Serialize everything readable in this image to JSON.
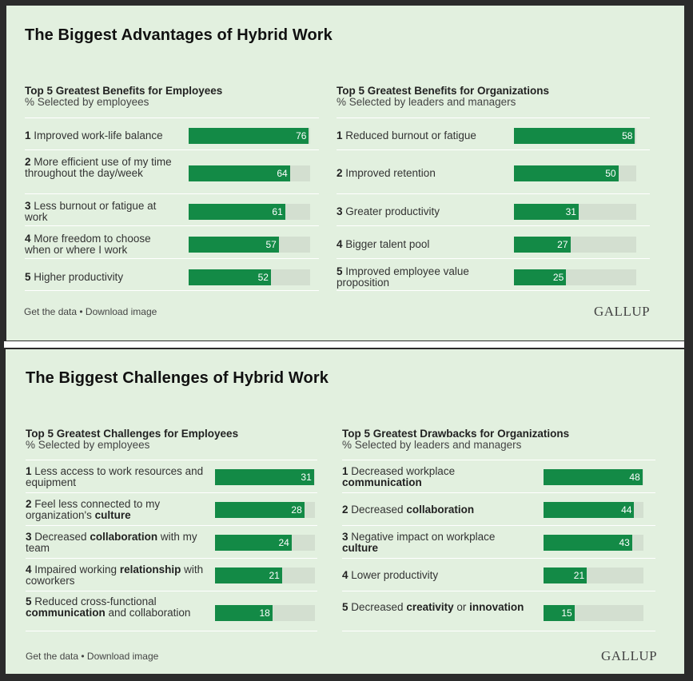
{
  "colors": {
    "bar": "#138a46",
    "track": "#d3dfd0",
    "panel": "#e2f0df"
  },
  "sections": [
    {
      "title": "The Biggest Advantages of Hybrid Work",
      "footer": "Get the data • Download image",
      "logo": "GALLUP",
      "charts": [
        {
          "heading": "Top 5 Greatest Benefits for Employees",
          "subheading": "% Selected by employees",
          "items": [
            {
              "rank": "1",
              "label": [
                {
                  "t": "Improved work-life balance"
                }
              ],
              "value": 76
            },
            {
              "rank": "2",
              "label": [
                {
                  "t": "More efficient use of my time throughout the day/week"
                }
              ],
              "value": 64
            },
            {
              "rank": "3",
              "label": [
                {
                  "t": "Less burnout or fatigue at work"
                }
              ],
              "value": 61
            },
            {
              "rank": "4",
              "label": [
                {
                  "t": "More freedom to choose when or where I work"
                }
              ],
              "value": 57
            },
            {
              "rank": "5",
              "label": [
                {
                  "t": "Higher productivity"
                }
              ],
              "value": 52
            }
          ]
        },
        {
          "heading": "Top 5 Greatest Benefits for Organizations",
          "subheading": "% Selected by leaders and managers",
          "items": [
            {
              "rank": "1",
              "label": [
                {
                  "t": "Reduced burnout or fatigue"
                }
              ],
              "value": 58
            },
            {
              "rank": "2",
              "label": [
                {
                  "t": "Improved retention"
                }
              ],
              "value": 50
            },
            {
              "rank": "3",
              "label": [
                {
                  "t": "Greater productivity"
                }
              ],
              "value": 31
            },
            {
              "rank": "4",
              "label": [
                {
                  "t": "Bigger talent pool"
                }
              ],
              "value": 27
            },
            {
              "rank": "5",
              "label": [
                {
                  "t": "Improved employee value proposition"
                }
              ],
              "value": 25
            }
          ]
        }
      ]
    },
    {
      "title": "The Biggest Challenges of Hybrid Work",
      "footer": "Get the data • Download image",
      "logo": "GALLUP",
      "charts": [
        {
          "heading": "Top 5 Greatest Challenges for Employees",
          "subheading": "% Selected by employees",
          "items": [
            {
              "rank": "1",
              "label": [
                {
                  "t": "Less access to work resources and equipment"
                }
              ],
              "value": 31
            },
            {
              "rank": "2",
              "label": [
                {
                  "t": "Feel less connected to my organization's "
                },
                {
                  "t": "culture",
                  "b": true
                }
              ],
              "value": 28
            },
            {
              "rank": "3",
              "label": [
                {
                  "t": "Decreased "
                },
                {
                  "t": "collaboration",
                  "b": true
                },
                {
                  "t": " with my team"
                }
              ],
              "value": 24
            },
            {
              "rank": "4",
              "label": [
                {
                  "t": "Impaired working "
                },
                {
                  "t": "relationship",
                  "b": true
                },
                {
                  "t": " with coworkers"
                }
              ],
              "value": 21
            },
            {
              "rank": "5",
              "label": [
                {
                  "t": "Reduced cross-functional "
                },
                {
                  "t": "communication",
                  "b": true
                },
                {
                  "t": " and collaboration"
                }
              ],
              "value": 18
            }
          ]
        },
        {
          "heading": "Top 5 Greatest Drawbacks for Organizations",
          "subheading": "% Selected by leaders and managers",
          "items": [
            {
              "rank": "1",
              "label": [
                {
                  "t": "Decreased workplace "
                },
                {
                  "t": "communication",
                  "b": true
                }
              ],
              "value": 48
            },
            {
              "rank": "2",
              "label": [
                {
                  "t": "Decreased "
                },
                {
                  "t": "collaboration",
                  "b": true
                }
              ],
              "value": 44
            },
            {
              "rank": "3",
              "label": [
                {
                  "t": "Negative impact on workplace "
                },
                {
                  "t": "culture",
                  "b": true
                }
              ],
              "value": 43
            },
            {
              "rank": "4",
              "label": [
                {
                  "t": "Lower productivity"
                }
              ],
              "value": 21
            },
            {
              "rank": "5",
              "label": [
                {
                  "t": "Decreased "
                },
                {
                  "t": "creativity",
                  "b": true
                },
                {
                  "t": " or "
                },
                {
                  "t": "innovation",
                  "b": true
                }
              ],
              "value": 15
            }
          ]
        }
      ]
    }
  ],
  "chart_data": [
    {
      "type": "bar",
      "title": "Top 5 Greatest Benefits for Employees",
      "categories": [
        "Improved work-life balance",
        "More efficient use of my time throughout the day/week",
        "Less burnout or fatigue at work",
        "More freedom to choose when or where I work",
        "Higher productivity"
      ],
      "values": [
        76,
        64,
        61,
        57,
        52
      ]
    },
    {
      "type": "bar",
      "title": "Top 5 Greatest Benefits for Organizations",
      "categories": [
        "Reduced burnout or fatigue",
        "Improved retention",
        "Greater productivity",
        "Bigger talent pool",
        "Improved employee value proposition"
      ],
      "values": [
        58,
        50,
        31,
        27,
        25
      ]
    },
    {
      "type": "bar",
      "title": "Top 5 Greatest Challenges for Employees",
      "categories": [
        "Less access to work resources and equipment",
        "Feel less connected to my organization's culture",
        "Decreased collaboration with my team",
        "Impaired working relationship with coworkers",
        "Reduced cross-functional communication and collaboration"
      ],
      "values": [
        31,
        28,
        24,
        21,
        18
      ]
    },
    {
      "type": "bar",
      "title": "Top 5 Greatest Drawbacks for Organizations",
      "categories": [
        "Decreased workplace communication",
        "Decreased collaboration",
        "Negative impact on workplace culture",
        "Lower productivity",
        "Decreased creativity or innovation"
      ],
      "values": [
        48,
        44,
        43,
        21,
        15
      ]
    }
  ]
}
